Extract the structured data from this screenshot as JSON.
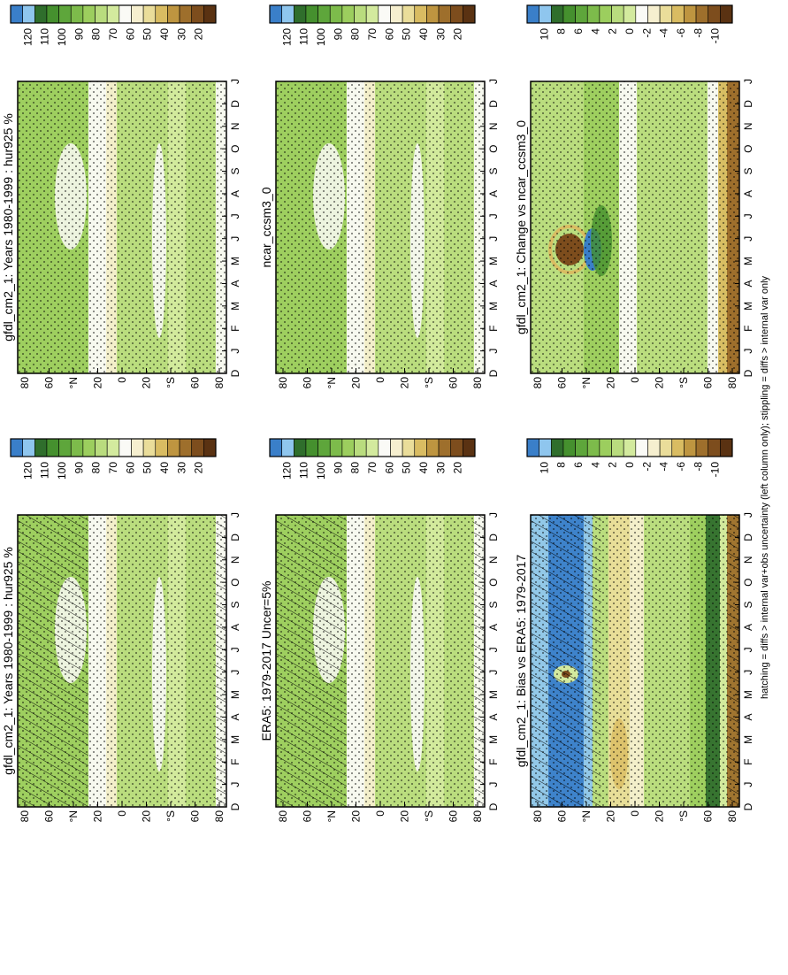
{
  "footnote": "hatching = diffs > internal var+obs uncertainty (left column only); stippling = diffs > internal var only",
  "colors": {
    "abs_scale": [
      "#3a7fc9",
      "#8fc6ee",
      "#2f6e2c",
      "#45902e",
      "#5ea63b",
      "#7dbb4b",
      "#9cce5e",
      "#b9dc7e",
      "#d3ea9e",
      "#fafaf6",
      "#f6efcf",
      "#eadd9a",
      "#d9bc62",
      "#be9540",
      "#9e6f2c",
      "#7d4d1d",
      "#5a3212"
    ],
    "diff_scale": [
      "#3a7fc9",
      "#8fc6ee",
      "#2f6e2c",
      "#45902e",
      "#5ea63b",
      "#7dbb4b",
      "#9cce5e",
      "#b9dc7e",
      "#d3ea9e",
      "#fafaf6",
      "#f6efcf",
      "#eadd9a",
      "#d9bc62",
      "#be9540",
      "#9e6f2c",
      "#7d4d1d",
      "#5a3212"
    ]
  },
  "chart_data": [
    {
      "type": "heatmap",
      "title": "gfdl_cm2_1: Years 1980-1999 : hur925 %",
      "months": [
        "D",
        "J",
        "F",
        "M",
        "A",
        "M",
        "J",
        "J",
        "A",
        "S",
        "O",
        "N",
        "D",
        "J"
      ],
      "lat_ticks": [
        "80",
        "60",
        "°N",
        "20",
        "0",
        "20",
        "°S",
        "60",
        "80"
      ],
      "scale": [
        "120",
        "110",
        "100",
        "90",
        "80",
        "70",
        "60",
        "50",
        "40",
        "30",
        "20"
      ],
      "base_value": 88,
      "overlays": [
        "hatching",
        "stippling"
      ]
    },
    {
      "type": "heatmap",
      "title": "gfdl_cm2_1: Years 1980-1999 : hur925 %",
      "months": [
        "D",
        "J",
        "F",
        "M",
        "A",
        "M",
        "J",
        "J",
        "A",
        "S",
        "O",
        "N",
        "D",
        "J"
      ],
      "lat_ticks": [
        "80",
        "60",
        "°N",
        "20",
        "0",
        "20",
        "°S",
        "60",
        "80"
      ],
      "scale": [
        "120",
        "110",
        "100",
        "90",
        "80",
        "70",
        "60",
        "50",
        "40",
        "30",
        "20"
      ],
      "base_value": 88,
      "overlays": [
        "stippling"
      ]
    },
    {
      "type": "heatmap",
      "title": "ERA5: 1979-2017 Uncer=5%",
      "months": [
        "D",
        "J",
        "F",
        "M",
        "A",
        "M",
        "J",
        "J",
        "A",
        "S",
        "O",
        "N",
        "D",
        "J"
      ],
      "lat_ticks": [
        "80",
        "60",
        "°N",
        "20",
        "0",
        "20",
        "°S",
        "60",
        "80"
      ],
      "scale": [
        "120",
        "110",
        "100",
        "90",
        "80",
        "70",
        "60",
        "50",
        "40",
        "30",
        "20"
      ],
      "base_value": 86,
      "overlays": [
        "hatching",
        "stippling"
      ]
    },
    {
      "type": "heatmap",
      "title": "ncar_ccsm3_0",
      "months": [
        "D",
        "J",
        "F",
        "M",
        "A",
        "M",
        "J",
        "J",
        "A",
        "S",
        "O",
        "N",
        "D",
        "J"
      ],
      "lat_ticks": [
        "80",
        "60",
        "°N",
        "20",
        "0",
        "20",
        "°S",
        "60",
        "80"
      ],
      "scale": [
        "120",
        "110",
        "100",
        "90",
        "80",
        "70",
        "60",
        "50",
        "40",
        "30",
        "20"
      ],
      "base_value": 86,
      "overlays": [
        "stippling"
      ]
    },
    {
      "type": "heatmap",
      "title": "gfdl_cm2_1: Bias vs ERA5: 1979-2017",
      "months": [
        "D",
        "J",
        "F",
        "M",
        "A",
        "M",
        "J",
        "J",
        "A",
        "S",
        "O",
        "N",
        "D",
        "J"
      ],
      "lat_ticks": [
        "80",
        "60",
        "°N",
        "20",
        "0",
        "20",
        "°S",
        "60",
        "80"
      ],
      "scale": [
        "10",
        "8",
        "6",
        "4",
        "2",
        "0",
        "-2",
        "-4",
        "-6",
        "-8",
        "-10"
      ],
      "base_value": 4,
      "overlays": [
        "hatching",
        "stippling"
      ]
    },
    {
      "type": "heatmap",
      "title": "gfdl_cm2_1: Change vs ncar_ccsm3_0",
      "months": [
        "D",
        "J",
        "F",
        "M",
        "A",
        "M",
        "J",
        "J",
        "A",
        "S",
        "O",
        "N",
        "D",
        "J"
      ],
      "lat_ticks": [
        "80",
        "60",
        "°N",
        "20",
        "0",
        "20",
        "°S",
        "60",
        "80"
      ],
      "scale": [
        "10",
        "8",
        "6",
        "4",
        "2",
        "0",
        "-2",
        "-4",
        "-6",
        "-8",
        "-10"
      ],
      "base_value": 3,
      "overlays": [
        "stippling"
      ]
    }
  ]
}
